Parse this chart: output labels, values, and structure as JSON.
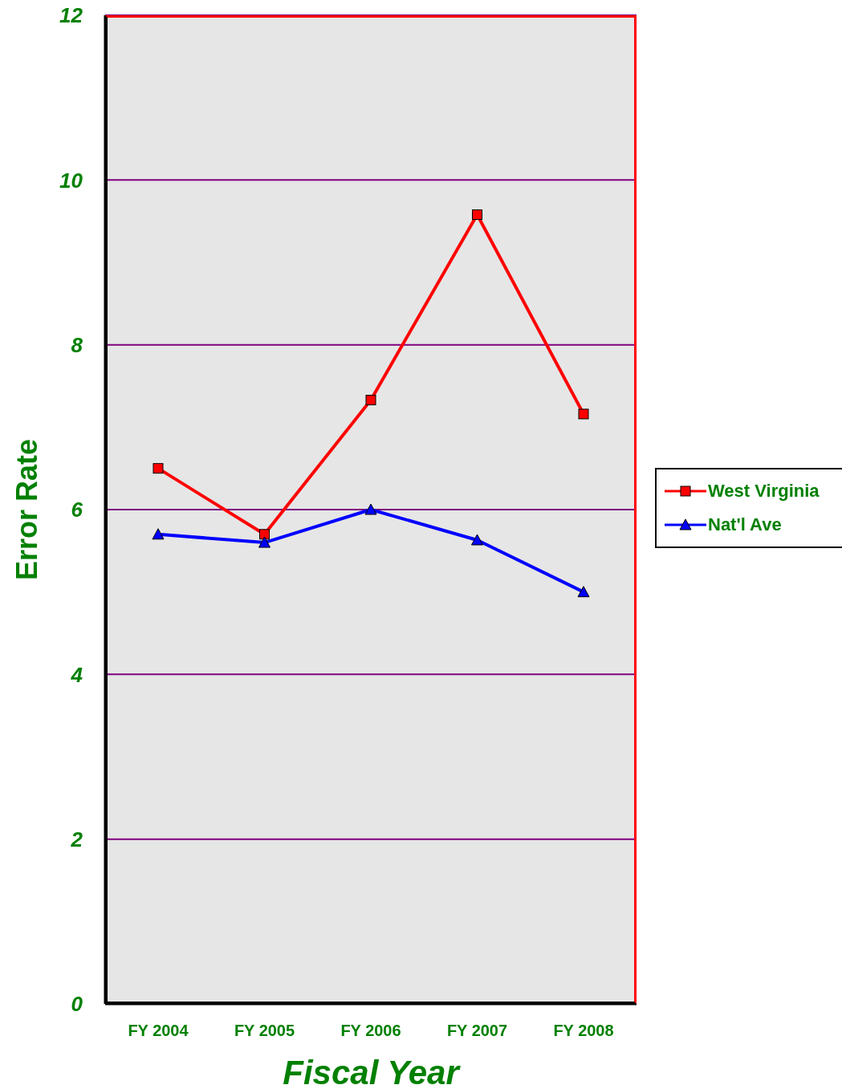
{
  "chart_data": {
    "type": "line",
    "xlabel": "Fiscal Year",
    "ylabel": "Error Rate",
    "categories": [
      "FY 2004",
      "FY 2005",
      "FY 2006",
      "FY 2007",
      "FY 2008"
    ],
    "series": [
      {
        "name": "West Virginia",
        "color": "#ff0000",
        "marker": "square",
        "values": [
          6.5,
          5.7,
          7.33,
          9.58,
          7.16
        ]
      },
      {
        "name": "Nat'l Ave",
        "color": "#0000ff",
        "marker": "triangle",
        "values": [
          5.7,
          5.6,
          6.0,
          5.63,
          5.0
        ]
      }
    ],
    "ylim": [
      0,
      12
    ],
    "yticks": [
      0,
      2,
      4,
      6,
      8,
      10,
      12
    ],
    "grid": "y",
    "legend": "right",
    "line_style": "solid"
  }
}
